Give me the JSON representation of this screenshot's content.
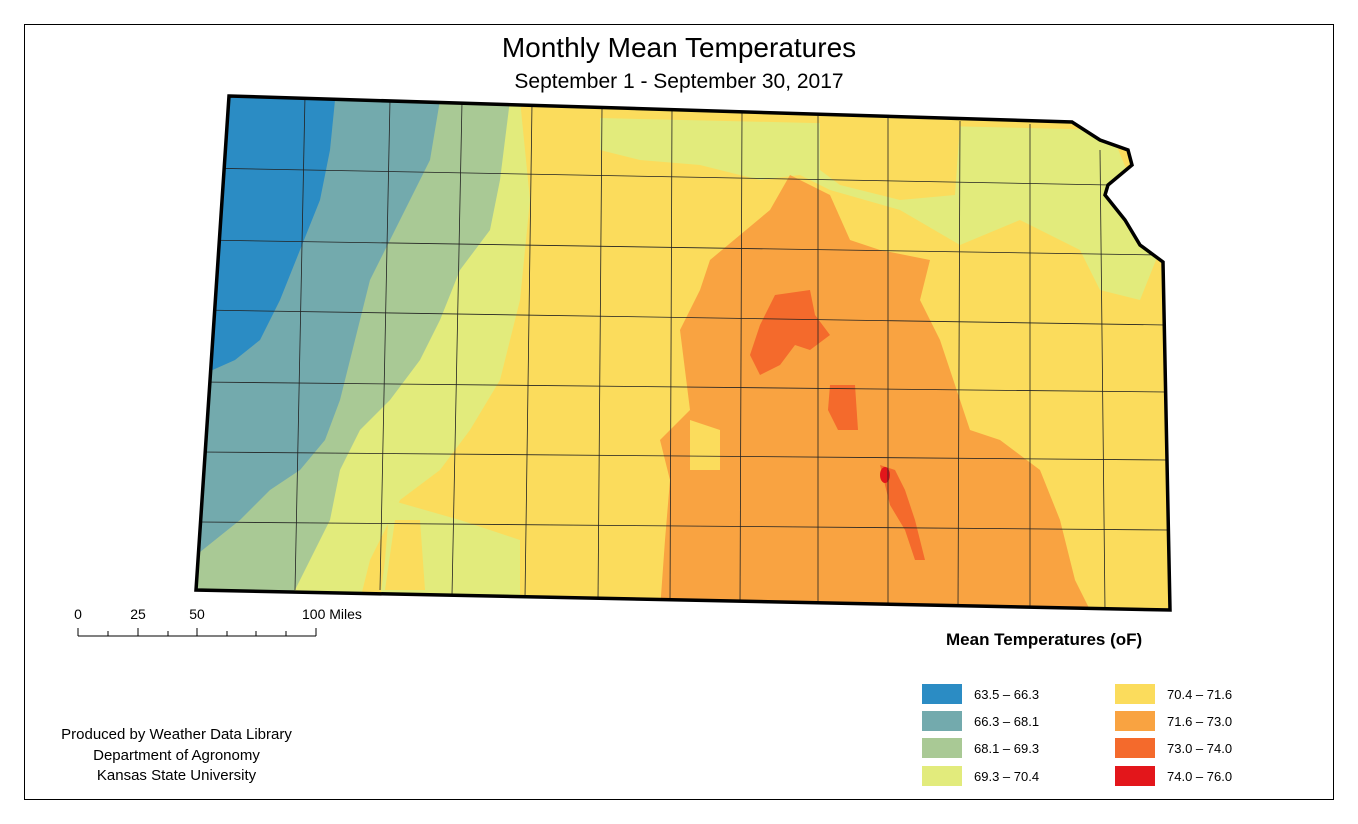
{
  "header": {
    "title": "Monthly Mean Temperatures",
    "subtitle": "September 1 - September 30, 2017"
  },
  "scale_bar": {
    "ticks": [
      "0",
      "25",
      "50",
      "100"
    ],
    "units": "100 Miles"
  },
  "legend": {
    "title": "Mean Temperatures (oF)",
    "classes": [
      {
        "label": "63.5 – 66.3",
        "color": "#2b8cc4"
      },
      {
        "label": "66.3 – 68.1",
        "color": "#73aaad"
      },
      {
        "label": "68.1 – 69.3",
        "color": "#a9c995"
      },
      {
        "label": "69.3 – 70.4",
        "color": "#e2eb7c"
      },
      {
        "label": "70.4 – 71.6",
        "color": "#fbdc5c"
      },
      {
        "label": "71.6 – 73.0",
        "color": "#f9a341"
      },
      {
        "label": "73.0 – 74.0",
        "color": "#f46a2c"
      },
      {
        "label": "74.0 – 76.0",
        "color": "#e3161b"
      }
    ]
  },
  "credits": {
    "line1": "Produced by Weather Data Library",
    "line2": "Department of Agronomy",
    "line3": "Kansas State University"
  }
}
